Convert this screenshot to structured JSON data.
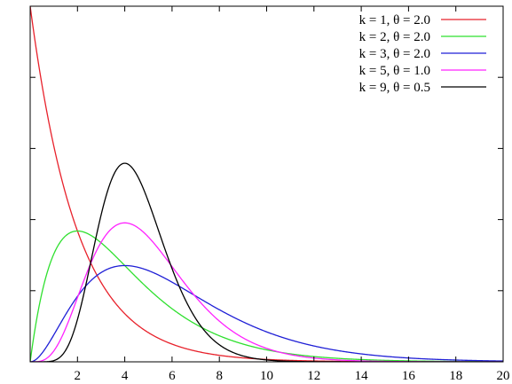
{
  "chart_data": {
    "type": "line",
    "title": "",
    "xlabel": "",
    "ylabel": "",
    "xlim": [
      0,
      20
    ],
    "ylim": [
      0,
      0.5
    ],
    "x_ticks": [
      0,
      2,
      4,
      6,
      8,
      10,
      12,
      14,
      16,
      18,
      20
    ],
    "x_tick_labels": [
      "",
      "2",
      "4",
      "6",
      "8",
      "10",
      "12",
      "14",
      "16",
      "18",
      "20"
    ],
    "y_ticks": [
      0,
      0.1,
      0.2,
      0.3,
      0.4,
      0.5
    ],
    "y_tick_labels_visible": false,
    "grid": false,
    "legend_position": "top-right",
    "series": [
      {
        "name": "k = 1, θ = 2.0",
        "k": 1,
        "theta": 2.0,
        "color": "#e8212b"
      },
      {
        "name": "k = 2, θ = 2.0",
        "k": 2,
        "theta": 2.0,
        "color": "#2fe02f"
      },
      {
        "name": "k = 3, θ = 2.0",
        "k": 3,
        "theta": 2.0,
        "color": "#1f1fd6"
      },
      {
        "name": "k = 5, θ = 1.0",
        "k": 5,
        "theta": 1.0,
        "color": "#ff22ff"
      },
      {
        "name": "k = 9, θ = 0.5",
        "k": 9,
        "theta": 0.5,
        "color": "#000000"
      }
    ]
  }
}
